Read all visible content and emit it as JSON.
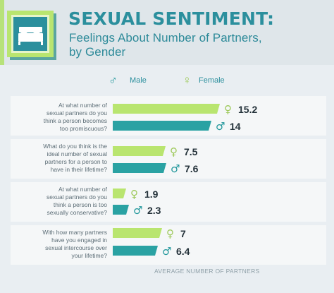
{
  "header": {
    "title": "SEXUAL SENTIMENT:",
    "subtitle_line1": "Feelings About Number of Partners,",
    "subtitle_line2": "by Gender"
  },
  "legend": {
    "male_label": "Male",
    "female_label": "Female"
  },
  "questions": [
    {
      "line1": "At what number of",
      "line2": "sexual partners do you",
      "line3": "think a person becomes",
      "line4": "too promiscuous?"
    },
    {
      "line1": "What do you think is the",
      "line2": "ideal number of sexual",
      "line3": "partners for a person to",
      "line4": "have in their lifetime?"
    },
    {
      "line1": "At what number of",
      "line2": "sexual partners do you",
      "line3": "think a person is too",
      "line4": "sexually conservative?"
    },
    {
      "line1": "With how many partners",
      "line2": "have you engaged in",
      "line3": "sexual intercourse over",
      "line4": "your lifetime?"
    }
  ],
  "axis_label": "AVERAGE NUMBER OF PARTNERS",
  "colors": {
    "female": "#b9e56f",
    "male": "#2aa2a3",
    "female_symbol": "#9ec95b",
    "male_symbol": "#23989c",
    "title": "#2b8f9d"
  },
  "chart_data": {
    "type": "bar",
    "orientation": "horizontal",
    "title": "SEXUAL SENTIMENT:",
    "subtitle": "Feelings About Number of Partners, by Gender",
    "xlabel": "AVERAGE NUMBER OF PARTNERS",
    "categories": [
      "At what number of sexual partners do you think a person becomes too promiscuous?",
      "What do you think is the ideal number of sexual partners for a person to have in their lifetime?",
      "At what number of sexual partners do you think a person is too sexually conservative?",
      "With how many partners have you engaged in sexual intercourse over your lifetime?"
    ],
    "series": [
      {
        "name": "Female",
        "values": [
          15.2,
          7.5,
          1.9,
          7
        ]
      },
      {
        "name": "Male",
        "values": [
          14,
          7.6,
          2.3,
          6.4
        ]
      }
    ],
    "value_labels": {
      "Female": [
        "15.2",
        "7.5",
        "1.9",
        "7"
      ],
      "Male": [
        "14",
        "7.6",
        "2.3",
        "6.4"
      ]
    },
    "xlim": [
      0,
      16
    ]
  }
}
